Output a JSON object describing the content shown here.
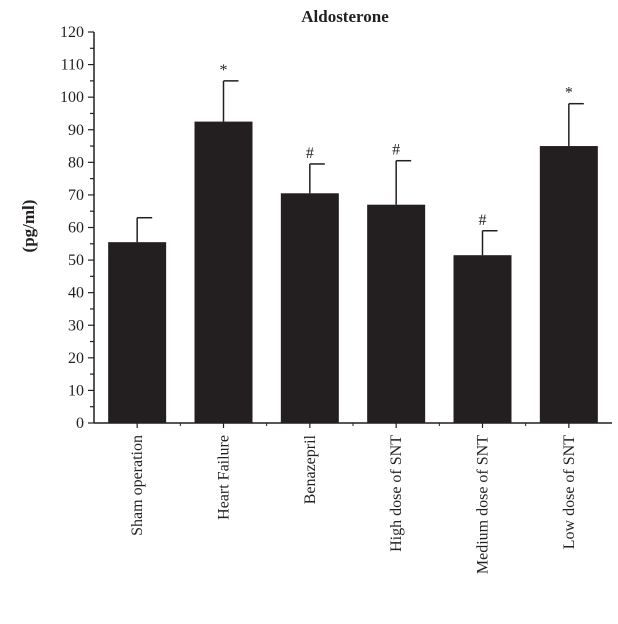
{
  "chart_data": {
    "type": "bar",
    "title": "Aldosterone",
    "xlabel": "",
    "ylabel": "(pg/ml)",
    "ylim": [
      0,
      120
    ],
    "yticks": [
      "0",
      "10",
      "20",
      "30",
      "40",
      "50",
      "60",
      "70",
      "80",
      "90",
      "100",
      "110",
      "120"
    ],
    "categories": [
      "Sham operation",
      "Heart Failure",
      "Benazepril",
      "High dose of SNT",
      "Medium dose of SNT",
      "Low dose of SNT"
    ],
    "values": [
      55.5,
      92.5,
      70.5,
      67,
      51.5,
      85
    ],
    "errors": [
      7.5,
      12.5,
      9,
      13.5,
      7.5,
      13
    ],
    "annotations": [
      "",
      "*",
      "#",
      "#",
      "#",
      "*"
    ],
    "grid": false,
    "bar_color": "#231f20"
  }
}
